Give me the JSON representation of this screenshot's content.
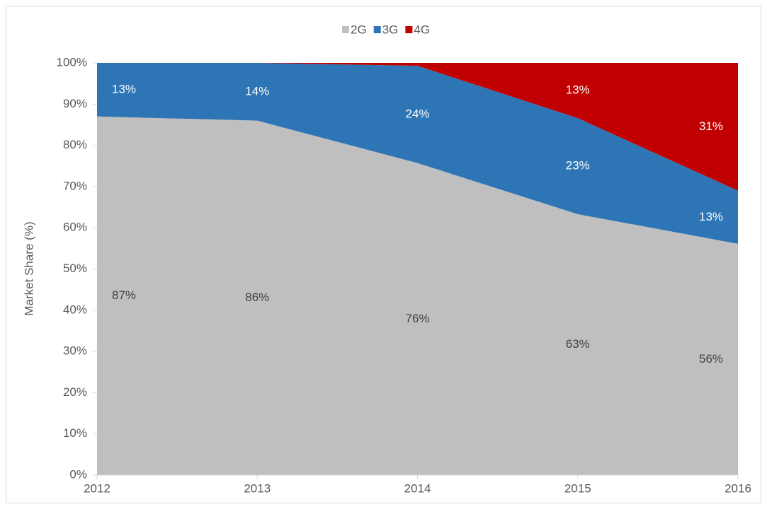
{
  "chart_data": {
    "type": "stacked_area",
    "y_label": "Market Share (%)",
    "x": [
      2012,
      2013,
      2014,
      2015,
      2016
    ],
    "xlim": [
      2012,
      2016
    ],
    "xticks": [
      2012,
      2013,
      2014,
      2015,
      2016
    ],
    "ylim": [
      0,
      100
    ],
    "yticks": [
      {
        "value": 0,
        "label": "0%"
      },
      {
        "value": 10,
        "label": "10%"
      },
      {
        "value": 20,
        "label": "20%"
      },
      {
        "value": 30,
        "label": "30%"
      },
      {
        "value": 40,
        "label": "40%"
      },
      {
        "value": 50,
        "label": "50%"
      },
      {
        "value": 60,
        "label": "60%"
      },
      {
        "value": 70,
        "label": "70%"
      },
      {
        "value": 80,
        "label": "80%"
      },
      {
        "value": 90,
        "label": "90%"
      },
      {
        "value": 100,
        "label": "100%"
      }
    ],
    "legend": "top",
    "series": [
      {
        "name": "2G",
        "color": "#bfbfbf",
        "label_color": "#404040",
        "values": [
          87,
          86,
          75.7,
          63.3,
          56.1
        ],
        "value_labels": [
          "87%",
          "86%",
          "76%",
          "63%",
          "56%"
        ]
      },
      {
        "name": "3G",
        "color": "#2e75b6",
        "label_color": "#ffffff",
        "values": [
          13,
          14,
          23.6,
          23.3,
          12.9
        ],
        "value_labels": [
          "13%",
          "14%",
          "24%",
          "23%",
          "13%"
        ]
      },
      {
        "name": "4G",
        "color": "#c00000",
        "label_color": "#ffffff",
        "values": [
          0,
          0,
          0.7,
          13.4,
          31
        ],
        "value_labels": [
          null,
          null,
          null,
          "13%",
          "31%"
        ]
      }
    ]
  }
}
